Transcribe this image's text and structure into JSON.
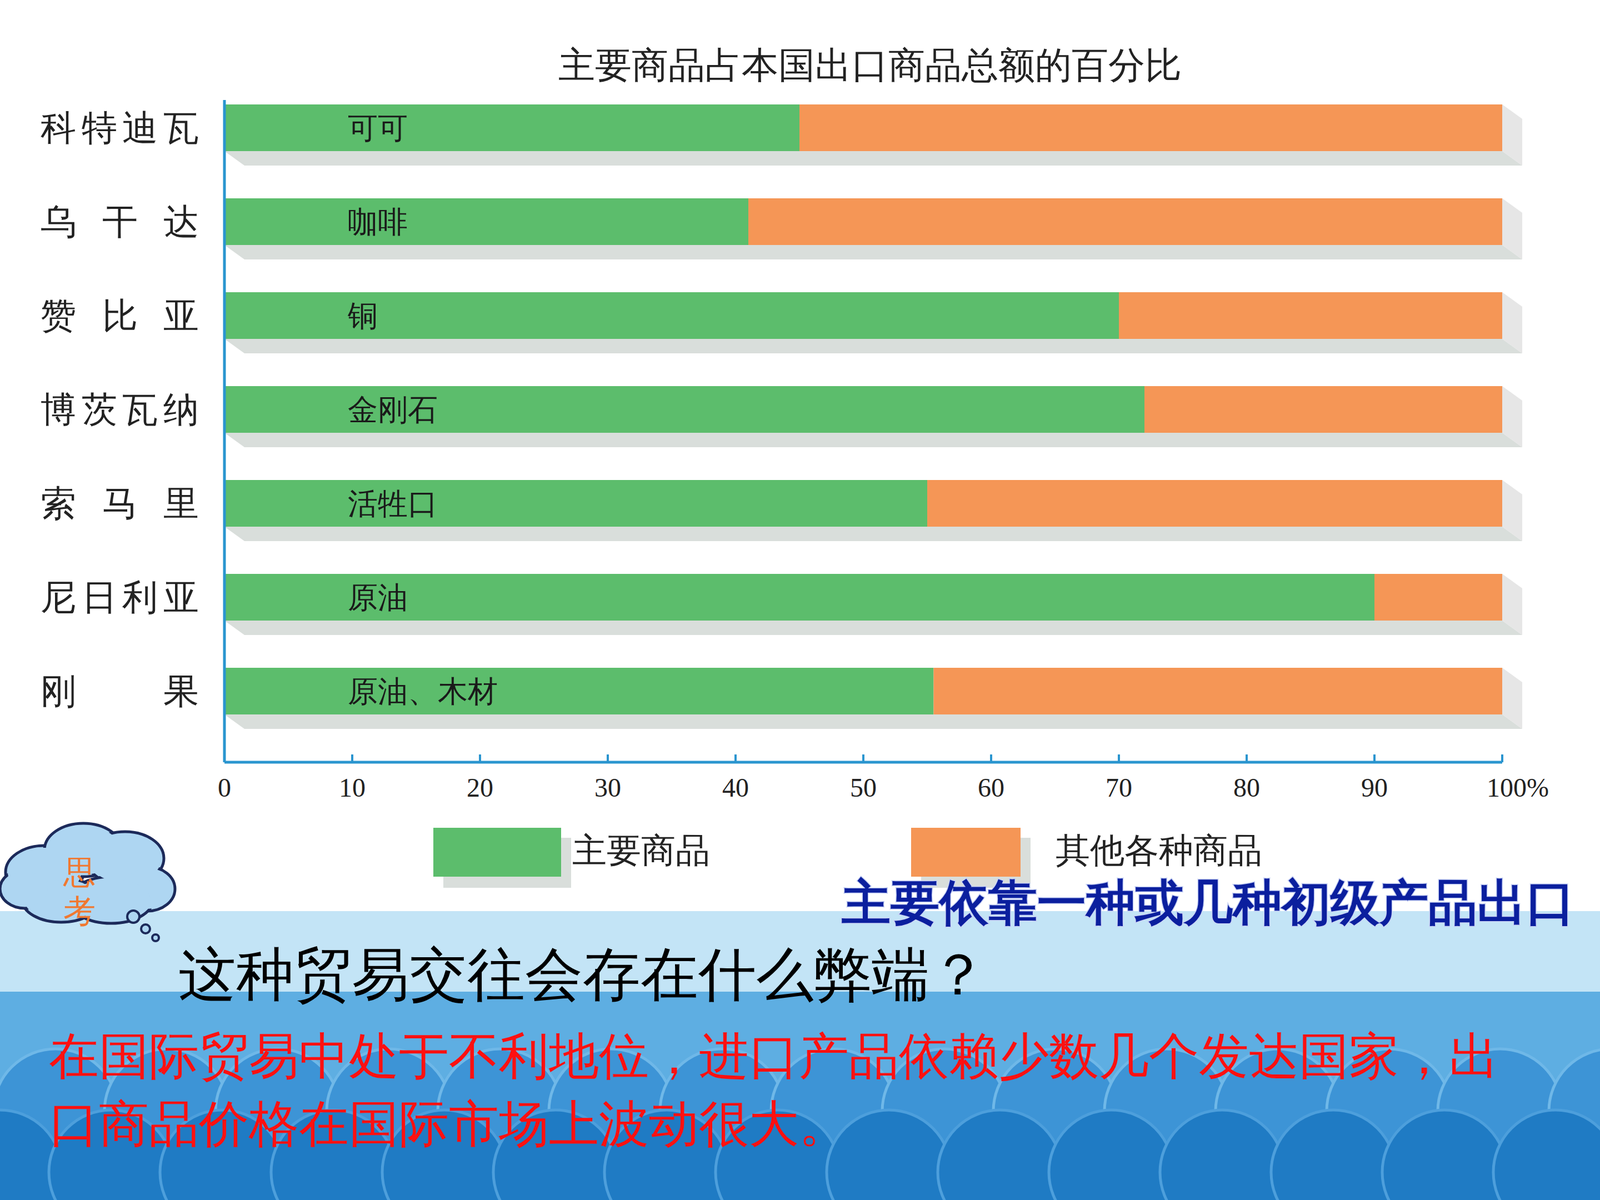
{
  "chart_data": {
    "type": "bar",
    "orientation": "horizontal",
    "stacked": true,
    "title": "主要商品占本国出口商品总额的百分比",
    "categories": [
      "科特迪瓦",
      "乌干达",
      "赞比亚",
      "博茨瓦纳",
      "索马里",
      "尼日利亚",
      "刚果"
    ],
    "series": [
      {
        "name": "主要商品",
        "color": "#5cbd6c",
        "values": [
          45,
          41,
          70,
          72,
          55,
          90,
          55.5
        ],
        "labels": [
          "可可",
          "咖啡",
          "铜",
          "金刚石",
          "活牲口",
          "原油",
          "原油、木材"
        ]
      },
      {
        "name": "其他各种商品",
        "color": "#f59656",
        "values": [
          55,
          59,
          30,
          28,
          45,
          10,
          44.5
        ]
      }
    ],
    "xlim": [
      0,
      100
    ],
    "xticks": [
      0,
      10,
      20,
      30,
      40,
      50,
      60,
      70,
      80,
      90,
      {
        "value": 100,
        "label": "100%"
      }
    ],
    "legend": "bottom",
    "grid": false,
    "annotations": [
      "思考",
      "主要依靠一种或几种初级产品出口",
      "这种贸易交往会存在什么弊端？",
      "在国际贸易中处于不利地位，进口产品依赖少数几个发达国家，出口商品价格在国际市场上波动很大。"
    ]
  }
}
